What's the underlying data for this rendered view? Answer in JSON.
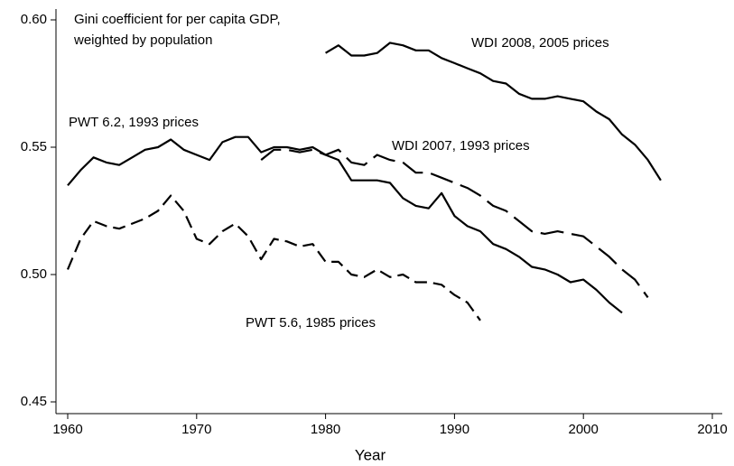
{
  "chart_data": {
    "type": "line",
    "x_label": "Year",
    "xlim": [
      1960,
      2010
    ],
    "xticks": [
      1960,
      1970,
      1980,
      1990,
      2000,
      2010
    ],
    "ylim": [
      0.45,
      0.6
    ],
    "yticks": [
      {
        "value": 0.45,
        "label": "0.45"
      },
      {
        "value": 0.5,
        "label": "0.50"
      },
      {
        "value": 0.55,
        "label": "0.55"
      },
      {
        "value": 0.6,
        "label": "0.60"
      }
    ],
    "annotations": [
      "Gini coefficient for per capita GDP,",
      "weighted by population",
      "WDI 2008, 2005 prices",
      "PWT 6.2, 1993 prices",
      "WDI 2007, 1993 prices",
      "PWT 5.6, 1985 prices"
    ],
    "series": [
      {
        "name": "PWT 6.2, 1993 prices",
        "color": "#000000",
        "style": "solid",
        "x": [
          1960,
          1961,
          1962,
          1963,
          1964,
          1965,
          1966,
          1967,
          1968,
          1969,
          1970,
          1971,
          1972,
          1973,
          1974,
          1975,
          1976,
          1977,
          1978,
          1979,
          1980,
          1981,
          1982,
          1983,
          1984,
          1985,
          1986,
          1987,
          1988,
          1989,
          1990,
          1991,
          1992,
          1993,
          1994,
          1995,
          1996,
          1997,
          1998,
          1999,
          2000,
          2001,
          2002,
          2003
        ],
        "values": [
          0.535,
          0.541,
          0.546,
          0.544,
          0.543,
          0.546,
          0.549,
          0.55,
          0.553,
          0.549,
          0.547,
          0.545,
          0.552,
          0.554,
          0.554,
          0.548,
          0.55,
          0.55,
          0.549,
          0.55,
          0.547,
          0.545,
          0.537,
          0.537,
          0.537,
          0.536,
          0.53,
          0.527,
          0.526,
          0.532,
          0.523,
          0.519,
          0.517,
          0.512,
          0.51,
          0.507,
          0.503,
          0.502,
          0.5,
          0.497,
          0.498,
          0.494,
          0.489,
          0.485
        ]
      },
      {
        "name": "PWT 5.6, 1985 prices",
        "color": "#000000",
        "style": "dashed",
        "x": [
          1960,
          1961,
          1962,
          1963,
          1964,
          1965,
          1966,
          1967,
          1968,
          1969,
          1970,
          1971,
          1972,
          1973,
          1974,
          1975,
          1976,
          1977,
          1978,
          1979,
          1980,
          1981,
          1982,
          1983,
          1984,
          1985,
          1986,
          1987,
          1988,
          1989,
          1990,
          1991,
          1992
        ],
        "values": [
          0.502,
          0.514,
          0.521,
          0.519,
          0.518,
          0.52,
          0.522,
          0.525,
          0.531,
          0.525,
          0.514,
          0.512,
          0.517,
          0.52,
          0.515,
          0.506,
          0.514,
          0.513,
          0.511,
          0.512,
          0.505,
          0.505,
          0.5,
          0.499,
          0.502,
          0.499,
          0.5,
          0.497,
          0.497,
          0.496,
          0.492,
          0.489,
          0.482
        ]
      },
      {
        "name": "WDI 2007, 1993 prices",
        "color": "#000000",
        "style": "long-dashed",
        "x": [
          1975,
          1976,
          1977,
          1978,
          1979,
          1980,
          1981,
          1982,
          1983,
          1984,
          1985,
          1986,
          1987,
          1988,
          1989,
          1990,
          1991,
          1992,
          1993,
          1994,
          1995,
          1996,
          1997,
          1998,
          1999,
          2000,
          2001,
          2002,
          2003,
          2004,
          2005
        ],
        "values": [
          0.545,
          0.549,
          0.549,
          0.548,
          0.549,
          0.547,
          0.549,
          0.544,
          0.543,
          0.547,
          0.545,
          0.544,
          0.54,
          0.54,
          0.538,
          0.536,
          0.534,
          0.531,
          0.527,
          0.525,
          0.521,
          0.517,
          0.516,
          0.517,
          0.516,
          0.515,
          0.511,
          0.507,
          0.502,
          0.498,
          0.491
        ]
      },
      {
        "name": "WDI 2008, 2005 prices",
        "color": "#000000",
        "style": "solid",
        "x": [
          1980,
          1981,
          1982,
          1983,
          1984,
          1985,
          1986,
          1987,
          1988,
          1989,
          1990,
          1991,
          1992,
          1993,
          1994,
          1995,
          1996,
          1997,
          1998,
          1999,
          2000,
          2001,
          2002,
          2003,
          2004,
          2005,
          2006
        ],
        "values": [
          0.587,
          0.59,
          0.586,
          0.586,
          0.587,
          0.591,
          0.59,
          0.588,
          0.588,
          0.585,
          0.583,
          0.581,
          0.579,
          0.576,
          0.575,
          0.571,
          0.569,
          0.569,
          0.57,
          0.569,
          0.568,
          0.564,
          0.561,
          0.555,
          0.551,
          0.545,
          0.537
        ]
      }
    ]
  }
}
